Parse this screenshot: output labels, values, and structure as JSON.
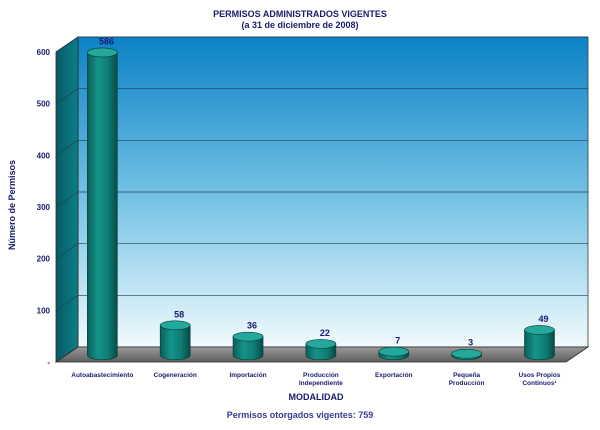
{
  "chart_data": {
    "type": "bar",
    "title": "PERMISOS ADMINISTRADOS VIGENTES",
    "subtitle": "(a 31 de diciembre de 2008)",
    "xlabel": "MODALIDAD",
    "ylabel": "Número de Permisos",
    "categories": [
      [
        "Autoabastecimiento"
      ],
      [
        "Cogeneración"
      ],
      [
        "Importación"
      ],
      [
        "Producción",
        "Independiente"
      ],
      [
        "Exportación"
      ],
      [
        "Pequeña",
        "Producción"
      ],
      [
        "Usos Propios",
        "Continuos¹"
      ]
    ],
    "values": [
      586,
      58,
      36,
      22,
      7,
      3,
      49
    ],
    "ylim": [
      0,
      600
    ],
    "yticks": [
      "-",
      "100",
      "200",
      "300",
      "400",
      "500",
      "600"
    ],
    "grid": true,
    "footnote": "Permisos otorgados vigentes: 759",
    "colors": {
      "bar_side": "#0f7a72",
      "bar_top": "#25a89c",
      "plot_top": "#0e86c8",
      "plot_bottom": "#e9f6fb",
      "wall": "#0a6d78",
      "floor": "#7a7a7a",
      "text": "#1a1a6e"
    }
  }
}
